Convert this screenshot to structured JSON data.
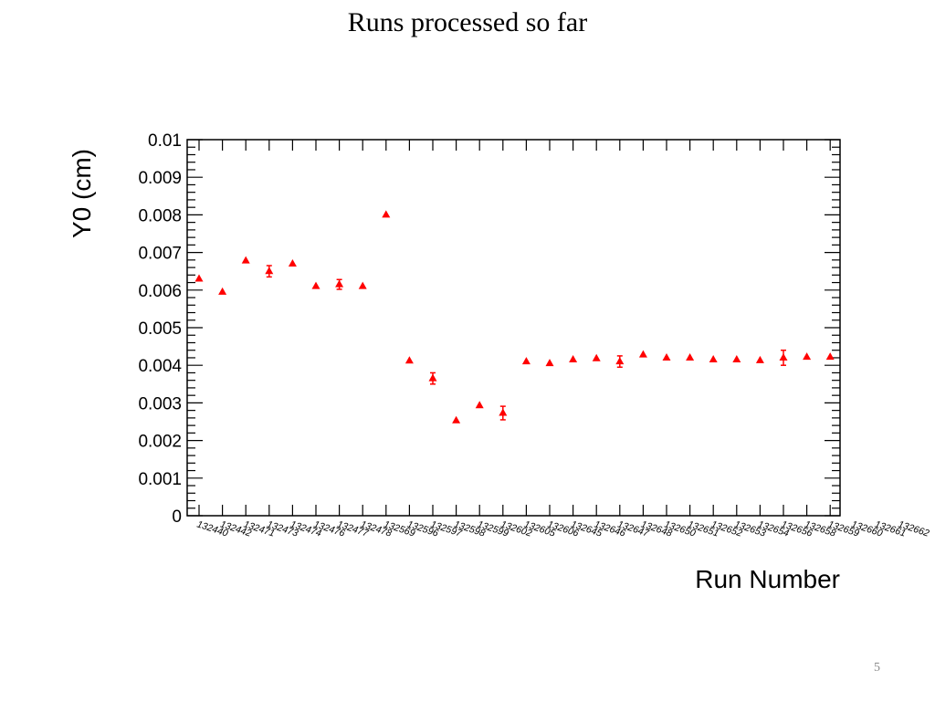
{
  "slide": {
    "title": "Runs processed so far",
    "page_number": "5"
  },
  "chart_data": {
    "type": "scatter",
    "title": "",
    "xlabel": "Run Number",
    "ylabel": "Y0 (cm)",
    "ylim": [
      0,
      0.01
    ],
    "y_ticks": [
      "0",
      "0.001",
      "0.002",
      "0.003",
      "0.004",
      "0.005",
      "0.006",
      "0.007",
      "0.008",
      "0.009",
      "0.01"
    ],
    "grid": false,
    "marker_color": "#ff0000",
    "categories": [
      "132440",
      "132442",
      "132471",
      "132473",
      "132474",
      "132476",
      "132477",
      "132478",
      "132569",
      "132596",
      "132597",
      "132598",
      "132599",
      "132602",
      "132605",
      "132606",
      "132645",
      "132646",
      "132647",
      "132648",
      "132650",
      "132651",
      "132652",
      "132653",
      "132654",
      "132656",
      "132658",
      "132659",
      "132660",
      "132661",
      "132662"
    ],
    "series": [
      {
        "values": [
          0.0063,
          0.00595,
          0.00678,
          0.0065,
          0.0067,
          0.0061,
          0.00615,
          0.0061,
          0.008,
          0.00412,
          0.00365,
          0.00253,
          0.00293,
          0.00273,
          0.0041,
          0.00405,
          0.00415,
          0.00418,
          0.0041,
          0.00428,
          0.0042,
          0.0042,
          0.00415,
          0.00415,
          0.00413,
          0.0042,
          0.00422,
          0.00422
        ],
        "errors": [
          3e-05,
          3e-05,
          3e-05,
          0.00015,
          3e-05,
          3e-05,
          0.00013,
          3e-05,
          3e-05,
          3e-05,
          0.00015,
          3e-05,
          3e-05,
          0.00018,
          3e-05,
          3e-05,
          3e-05,
          3e-05,
          0.00015,
          3e-05,
          3e-05,
          3e-05,
          3e-05,
          3e-05,
          3e-05,
          0.0002,
          3e-05,
          3e-05
        ],
        "x_index": [
          0,
          1,
          2,
          3,
          4,
          5,
          6,
          7,
          8,
          9,
          10,
          11,
          12,
          13,
          14,
          15,
          16,
          17,
          18,
          19,
          20,
          21,
          22,
          23,
          24,
          25,
          26,
          27
        ]
      }
    ]
  }
}
